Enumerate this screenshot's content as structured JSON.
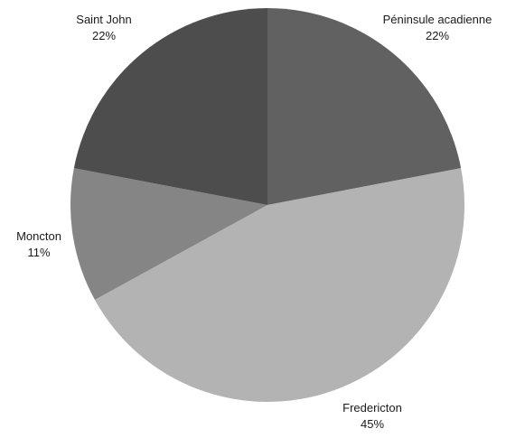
{
  "chart_data": {
    "type": "pie",
    "title": "",
    "categories": [
      "Péninsule acadienne",
      "Fredericton",
      "Moncton",
      "Saint John"
    ],
    "values": [
      22,
      45,
      11,
      22
    ],
    "value_labels": [
      "22%",
      "45%",
      "11%",
      "22%"
    ],
    "colors": [
      "#616161",
      "#b3b3b3",
      "#858585",
      "#4d4d4d"
    ],
    "start_at": "top",
    "direction": "clockwise",
    "legend": "none"
  }
}
